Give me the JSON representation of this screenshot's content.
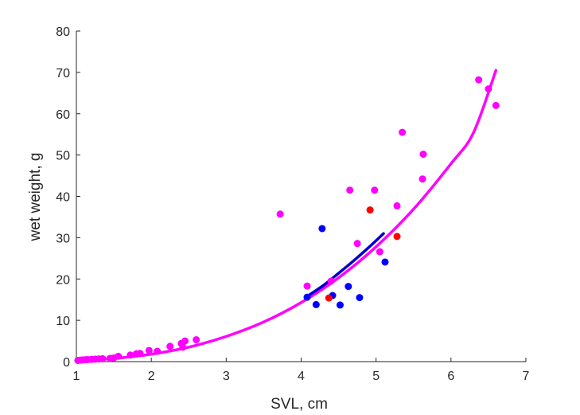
{
  "chart_data": {
    "type": "scatter",
    "title": "",
    "xlabel": "SVL, cm",
    "ylabel": "wet weight, g",
    "xlim": [
      1,
      7
    ],
    "ylim": [
      0,
      80
    ],
    "xticks": [
      "1",
      "2",
      "3",
      "4",
      "5",
      "6",
      "7"
    ],
    "yticks": [
      "0",
      "10",
      "20",
      "30",
      "40",
      "50",
      "60",
      "70",
      "80"
    ],
    "grid": false,
    "legend": "none",
    "series": [
      {
        "color": "#ff00ff",
        "kind": "points",
        "points": [
          [
            1.02,
            0.3
          ],
          [
            1.05,
            0.35
          ],
          [
            1.08,
            0.4
          ],
          [
            1.12,
            0.45
          ],
          [
            1.15,
            0.5
          ],
          [
            1.2,
            0.55
          ],
          [
            1.25,
            0.6
          ],
          [
            1.3,
            0.65
          ],
          [
            1.35,
            0.7
          ],
          [
            1.45,
            0.8
          ],
          [
            1.5,
            0.9
          ],
          [
            1.56,
            1.3
          ],
          [
            1.72,
            1.6
          ],
          [
            1.8,
            1.9
          ],
          [
            1.85,
            2.0
          ],
          [
            1.97,
            2.7
          ],
          [
            2.08,
            2.5
          ],
          [
            2.25,
            3.7
          ],
          [
            2.4,
            4.4
          ],
          [
            2.42,
            3.5
          ],
          [
            2.45,
            5.0
          ],
          [
            2.6,
            5.3
          ],
          [
            3.72,
            35.7
          ],
          [
            4.08,
            18.3
          ],
          [
            4.4,
            19.5
          ],
          [
            4.65,
            41.5
          ],
          [
            4.75,
            28.6
          ],
          [
            4.98,
            41.5
          ],
          [
            5.05,
            26.6
          ],
          [
            5.28,
            37.7
          ],
          [
            5.35,
            55.5
          ],
          [
            5.62,
            44.2
          ],
          [
            5.63,
            50.2
          ],
          [
            6.37,
            68.2
          ],
          [
            6.5,
            66.0
          ],
          [
            6.6,
            62.0
          ]
        ]
      },
      {
        "color": "#0000ff",
        "kind": "points",
        "points": [
          [
            4.08,
            15.6
          ],
          [
            4.2,
            13.8
          ],
          [
            4.28,
            32.2
          ],
          [
            4.42,
            16.0
          ],
          [
            4.52,
            13.7
          ],
          [
            4.63,
            18.2
          ],
          [
            4.78,
            15.5
          ],
          [
            5.12,
            24.1
          ]
        ]
      },
      {
        "color": "#ff0000",
        "kind": "points",
        "points": [
          [
            4.37,
            15.4
          ],
          [
            4.92,
            36.7
          ],
          [
            5.28,
            30.3
          ]
        ]
      },
      {
        "color": "#ff00ff",
        "kind": "curve",
        "points": [
          [
            1.0,
            0.22
          ],
          [
            1.5,
            0.76
          ],
          [
            2.0,
            1.8
          ],
          [
            2.5,
            3.5
          ],
          [
            3.0,
            6.1
          ],
          [
            3.5,
            9.6
          ],
          [
            4.0,
            14.3
          ],
          [
            4.5,
            20.3
          ],
          [
            5.0,
            27.8
          ],
          [
            5.5,
            36.9
          ],
          [
            6.0,
            47.9
          ],
          [
            6.3,
            55.4
          ],
          [
            6.6,
            70.5
          ]
        ]
      },
      {
        "color": "#0000cd",
        "kind": "curve",
        "points": [
          [
            4.08,
            15.8
          ],
          [
            4.3,
            18.5
          ],
          [
            4.5,
            21.4
          ],
          [
            4.7,
            24.4
          ],
          [
            4.9,
            27.6
          ],
          [
            5.1,
            31.0
          ]
        ]
      }
    ]
  }
}
